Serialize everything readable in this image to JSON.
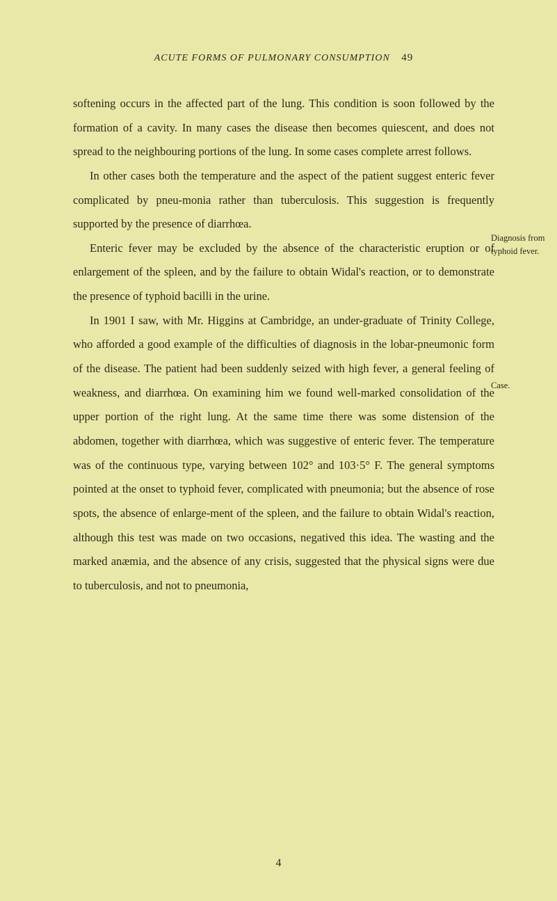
{
  "header": {
    "title": "ACUTE FORMS OF PULMONARY CONSUMPTION",
    "pageNumber": "49"
  },
  "paragraphs": {
    "p1": "softening occurs in the affected part of the lung. This condition is soon followed by the formation of a cavity. In many cases the disease then becomes quiescent, and does not spread to the neighbouring portions of the lung. In some cases complete arrest follows.",
    "p2": "In other cases both the temperature and the aspect of the patient suggest enteric fever complicated by pneu-monia rather than tuberculosis. This suggestion is frequently supported by the presence of diarrhœa.",
    "p3": "Enteric fever may be excluded by the absence of the characteristic eruption or of enlargement of the spleen, and by the failure to obtain Widal's reaction, or to demonstrate the presence of typhoid bacilli in the urine.",
    "p4": "In 1901 I saw, with Mr. Higgins at Cambridge, an under-graduate of Trinity College, who afforded a good example of the difficulties of diagnosis in the lobar-pneumonic form of the disease. The patient had been suddenly seized with high fever, a general feeling of weakness, and diarrhœa. On examining him we found well-marked consolidation of the upper portion of the right lung. At the same time there was some distension of the abdomen, together with diarrhœa, which was suggestive of enteric fever. The temperature was of the continuous type, varying between 102° and 103·5° F. The general symptoms pointed at the onset to typhoid fever, complicated with pneumonia; but the absence of rose spots, the absence of enlarge-ment of the spleen, and the failure to obtain Widal's reaction, although this test was made on two occasions, negatived this idea. The wasting and the marked anæmia, and the absence of any crisis, suggested that the physical signs were due to tuberculosis, and not to pneumonia,"
  },
  "marginNotes": {
    "note1": "Diagnosis from typhoid fever.",
    "note2": "Case."
  },
  "footer": {
    "sigNumber": "4"
  },
  "styling": {
    "backgroundColor": "#eae8a8",
    "textColor": "#2a2a1a",
    "bodyFontSize": 16.5,
    "headerFontSize": 14,
    "marginNoteFontSize": 12.5,
    "lineHeight": 2.1,
    "pageWidth": 801,
    "pageHeight": 1295
  }
}
